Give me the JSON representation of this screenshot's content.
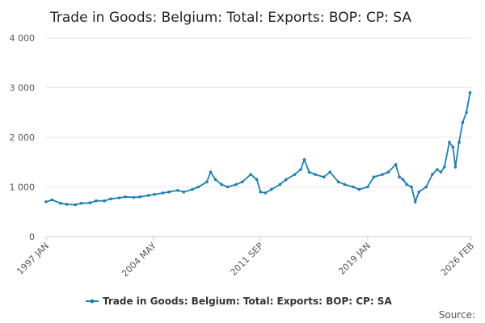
{
  "chart_data": {
    "type": "line",
    "title": "Trade in Goods: Belgium: Total: Exports: BOP: CP: SA",
    "xlabel": "",
    "ylabel": "",
    "ylim": [
      0,
      4000
    ],
    "yticks": [
      {
        "value": 0,
        "label": "0"
      },
      {
        "value": 1000,
        "label": "1 000"
      },
      {
        "value": 2000,
        "label": "2 000"
      },
      {
        "value": 3000,
        "label": "3 000"
      },
      {
        "value": 4000,
        "label": "4 000"
      }
    ],
    "xlim": [
      "1997-01",
      "2026-02"
    ],
    "xticks": [
      {
        "value": "1997-01",
        "label": "1997 JAN"
      },
      {
        "value": "2004-05",
        "label": "2004 MAY"
      },
      {
        "value": "2011-09",
        "label": "2011 SEP"
      },
      {
        "value": "2019-01",
        "label": "2019 JAN"
      },
      {
        "value": "2026-02",
        "label": "2026 FEB"
      }
    ],
    "grid": true,
    "legend": "bottom-center",
    "colors": {
      "series": "#1b80b8",
      "grid": "#e6e6e6",
      "axis": "#cccccc"
    },
    "series": [
      {
        "name": "Trade in Goods: Belgium: Total: Exports: BOP: CP: SA",
        "points": [
          [
            "1997-01",
            700
          ],
          [
            "1997-06",
            740
          ],
          [
            "1998-01",
            670
          ],
          [
            "1998-06",
            650
          ],
          [
            "1999-01",
            640
          ],
          [
            "1999-06",
            670
          ],
          [
            "2000-01",
            680
          ],
          [
            "2000-06",
            720
          ],
          [
            "2001-01",
            720
          ],
          [
            "2001-06",
            760
          ],
          [
            "2002-01",
            780
          ],
          [
            "2002-06",
            800
          ],
          [
            "2003-01",
            790
          ],
          [
            "2003-06",
            800
          ],
          [
            "2004-01",
            830
          ],
          [
            "2004-06",
            850
          ],
          [
            "2005-01",
            880
          ],
          [
            "2005-06",
            900
          ],
          [
            "2006-01",
            930
          ],
          [
            "2006-06",
            900
          ],
          [
            "2007-01",
            950
          ],
          [
            "2007-06",
            1000
          ],
          [
            "2008-01",
            1100
          ],
          [
            "2008-04",
            1300
          ],
          [
            "2008-08",
            1150
          ],
          [
            "2009-01",
            1050
          ],
          [
            "2009-06",
            1000
          ],
          [
            "2010-01",
            1050
          ],
          [
            "2010-06",
            1100
          ],
          [
            "2011-01",
            1250
          ],
          [
            "2011-06",
            1150
          ],
          [
            "2011-09",
            900
          ],
          [
            "2012-01",
            880
          ],
          [
            "2012-06",
            950
          ],
          [
            "2013-01",
            1050
          ],
          [
            "2013-06",
            1150
          ],
          [
            "2014-01",
            1250
          ],
          [
            "2014-06",
            1350
          ],
          [
            "2014-09",
            1550
          ],
          [
            "2015-01",
            1300
          ],
          [
            "2015-06",
            1250
          ],
          [
            "2016-01",
            1200
          ],
          [
            "2016-06",
            1300
          ],
          [
            "2017-01",
            1100
          ],
          [
            "2017-06",
            1050
          ],
          [
            "2018-01",
            1000
          ],
          [
            "2018-06",
            950
          ],
          [
            "2019-01",
            1000
          ],
          [
            "2019-06",
            1200
          ],
          [
            "2020-01",
            1250
          ],
          [
            "2020-06",
            1300
          ],
          [
            "2020-12",
            1450
          ],
          [
            "2021-03",
            1200
          ],
          [
            "2021-06",
            1150
          ],
          [
            "2021-09",
            1050
          ],
          [
            "2022-01",
            1000
          ],
          [
            "2022-04",
            700
          ],
          [
            "2022-07",
            900
          ],
          [
            "2023-01",
            1000
          ],
          [
            "2023-06",
            1250
          ],
          [
            "2023-10",
            1350
          ],
          [
            "2024-01",
            1300
          ],
          [
            "2024-04",
            1400
          ],
          [
            "2024-08",
            1900
          ],
          [
            "2024-11",
            1800
          ],
          [
            "2025-01",
            1400
          ],
          [
            "2025-04",
            1900
          ],
          [
            "2025-07",
            2300
          ],
          [
            "2025-10",
            2500
          ],
          [
            "2026-01",
            2900
          ]
        ]
      }
    ],
    "source_label": "Source:"
  }
}
